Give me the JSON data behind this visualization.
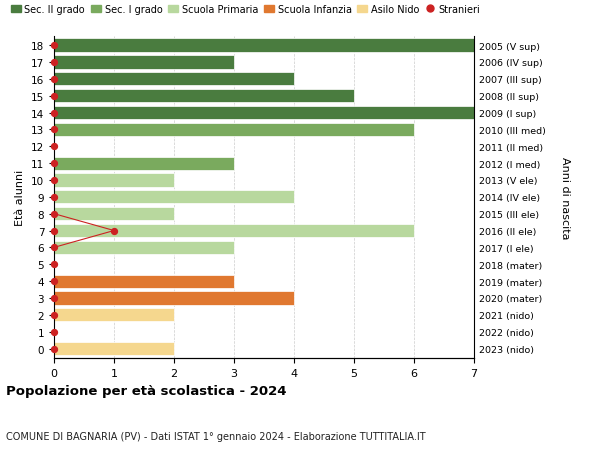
{
  "ages": [
    18,
    17,
    16,
    15,
    14,
    13,
    12,
    11,
    10,
    9,
    8,
    7,
    6,
    5,
    4,
    3,
    2,
    1,
    0
  ],
  "years": [
    "2005 (V sup)",
    "2006 (IV sup)",
    "2007 (III sup)",
    "2008 (II sup)",
    "2009 (I sup)",
    "2010 (III med)",
    "2011 (II med)",
    "2012 (I med)",
    "2013 (V ele)",
    "2014 (IV ele)",
    "2015 (III ele)",
    "2016 (II ele)",
    "2017 (I ele)",
    "2018 (mater)",
    "2019 (mater)",
    "2020 (mater)",
    "2021 (nido)",
    "2022 (nido)",
    "2023 (nido)"
  ],
  "values": [
    7,
    3,
    4,
    5,
    7,
    6,
    0,
    3,
    2,
    4,
    2,
    6,
    3,
    0,
    3,
    4,
    2,
    0,
    2
  ],
  "stranieri_line_ages": [
    8,
    7,
    6
  ],
  "stranieri_line_values": [
    0,
    1,
    0
  ],
  "bar_colors": [
    "#4a7c3f",
    "#4a7c3f",
    "#4a7c3f",
    "#4a7c3f",
    "#4a7c3f",
    "#7aaa5e",
    "#7aaa5e",
    "#7aaa5e",
    "#b8d89e",
    "#b8d89e",
    "#b8d89e",
    "#b8d89e",
    "#b8d89e",
    "#e07830",
    "#e07830",
    "#e07830",
    "#f5d78e",
    "#f5d78e",
    "#f5d78e"
  ],
  "color_sec2": "#4a7c3f",
  "color_sec1": "#7aaa5e",
  "color_primaria": "#b8d89e",
  "color_infanzia": "#e07830",
  "color_nido": "#f5d78e",
  "color_stranieri": "#cc2222",
  "title": "Popolazione per età scolastica - 2024",
  "subtitle": "COMUNE DI BAGNARIA (PV) - Dati ISTAT 1° gennaio 2024 - Elaborazione TUTTITALIA.IT",
  "ylabel": "Età alunni",
  "ylabel_right": "Anni di nascita",
  "xlim": [
    0,
    7
  ],
  "legend_labels": [
    "Sec. II grado",
    "Sec. I grado",
    "Scuola Primaria",
    "Scuola Infanzia",
    "Asilo Nido",
    "Stranieri"
  ],
  "bar_height": 0.78,
  "background_color": "#ffffff",
  "grid_color": "#cccccc"
}
